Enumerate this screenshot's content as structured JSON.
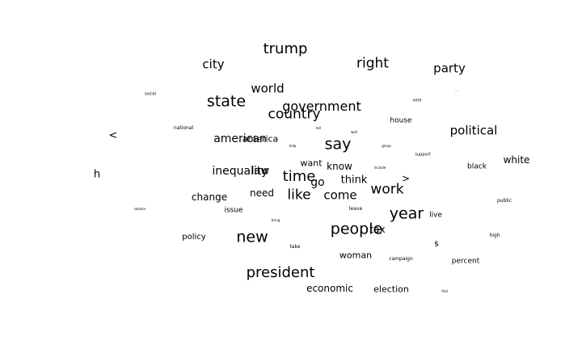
{
  "words": [
    "trump",
    "city",
    "right",
    "party",
    "world",
    "state",
    "government",
    "country",
    "political",
    "american",
    "america",
    "say",
    "white",
    "h",
    "inequality",
    "law",
    "time",
    "know",
    "think",
    "go",
    "work",
    "want",
    "change",
    "need",
    "like",
    "come",
    "year",
    "issue",
    "live",
    "policy",
    "new",
    "people",
    "tax",
    "high",
    "woman",
    "campaign",
    "percent",
    "president",
    "economic",
    "election",
    "house",
    "black",
    "<",
    ">",
    "$",
    "public",
    "social",
    "national",
    "vote",
    "support",
    "include",
    "leave",
    "take",
    "help",
    "tell",
    "well",
    "group",
    "obama",
    "bring",
    "find",
    "..."
  ]
}
